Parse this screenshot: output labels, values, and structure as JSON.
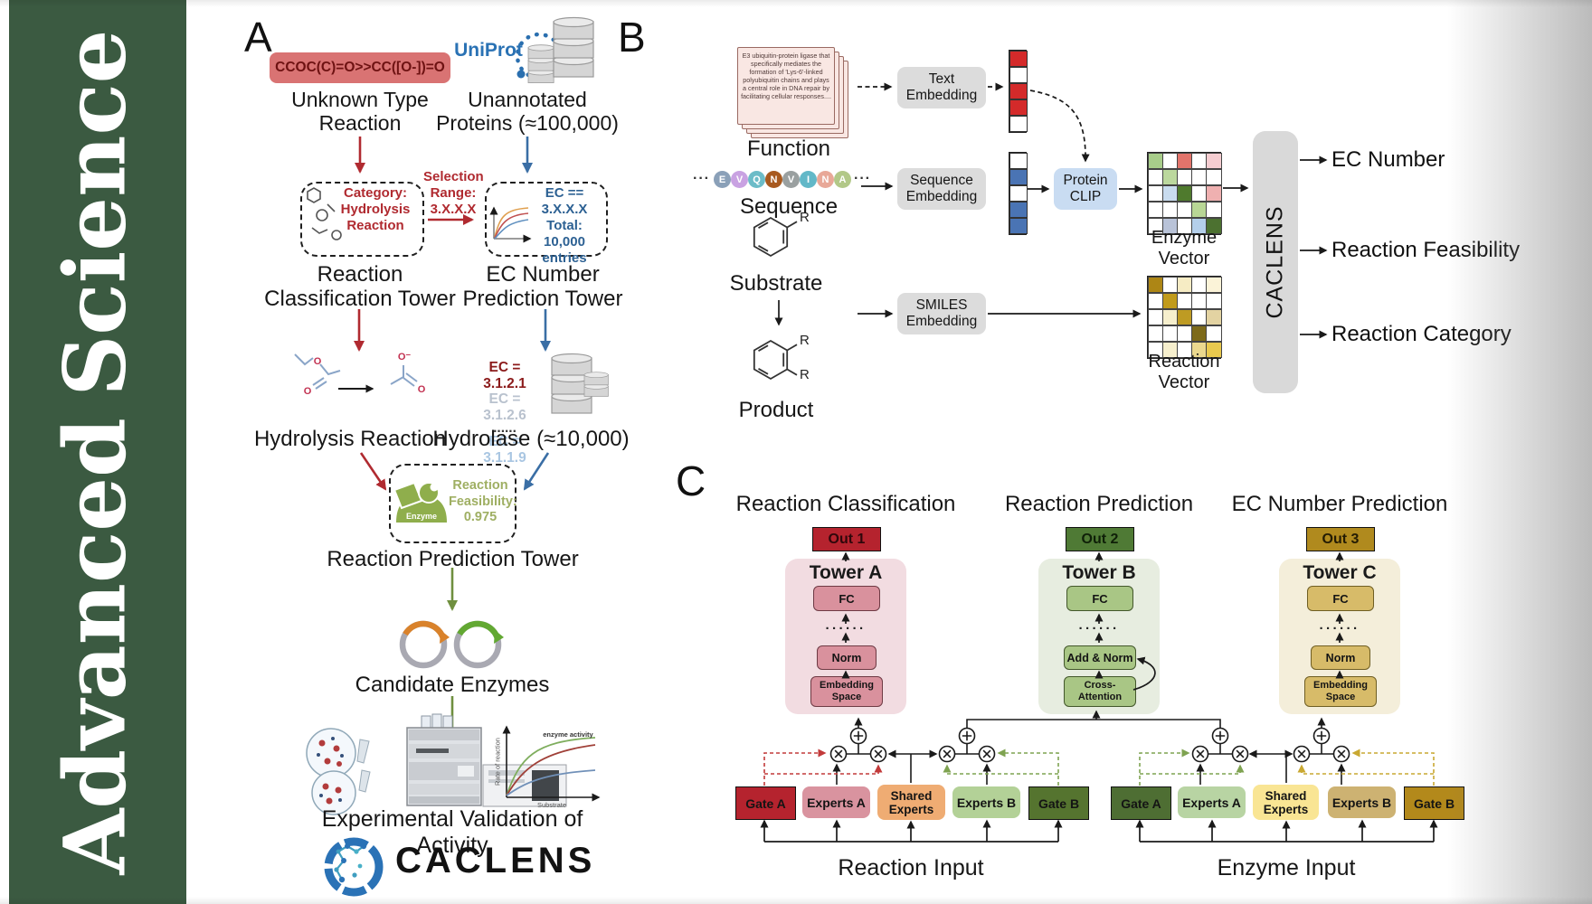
{
  "journal": {
    "title_words": [
      "Advanced",
      "Science"
    ],
    "bg_color": "#3B5A41"
  },
  "panelA": {
    "label": "A",
    "smiles_reaction": "CCOC(C)=O>>CC([O-])=O",
    "unknown_reaction_lines": [
      "Unknown Type",
      "Reaction"
    ],
    "uniprot_logo": "UniProt",
    "unannotated_lines": [
      "Unannotated",
      "Proteins (≈100,000)"
    ],
    "category_box_lines": [
      "Category:",
      "Hydrolysis",
      "Reaction"
    ],
    "selection_lines": [
      "Selection",
      "Range:",
      "3.X.X.X"
    ],
    "ec_filter_lines": [
      "EC == 3.X.X.X",
      "Total: 10,000",
      "entries"
    ],
    "classification_tower_lines": [
      "Reaction",
      "Classification Tower"
    ],
    "ec_tower_lines": [
      "EC Number",
      "Prediction Tower"
    ],
    "atoms": [
      "O",
      "O",
      "O⁻",
      "O"
    ],
    "ec_list": [
      {
        "text": "EC = 3.1.2.1",
        "color": "#8B1A1A"
      },
      {
        "text": "EC = 3.1.2.6",
        "color": "#B9C2CE"
      },
      {
        "text": "......",
        "color": "#3a3a3a"
      },
      {
        "text": "EC = 3.1.1.9",
        "color": "#A9C6E2"
      }
    ],
    "hydrolysis_reaction": "Hydrolysis Reaction",
    "hydrolase": "Hydrolase (≈10,000)",
    "enzyme_badge": "Enzyme",
    "feasibility_lines": [
      "Reaction",
      "Feasibility:",
      "0.975"
    ],
    "prediction_tower": "Reaction Prediction Tower",
    "candidate_enzymes": "Candidate Enzymes",
    "activity_plot": {
      "annotation": "enzyme activity",
      "ylabel": "Rate of reaction",
      "xlabel": "Substrate"
    },
    "validation": "Experimental Validation of Activity",
    "brand": "CACLENS"
  },
  "panelB": {
    "label": "B",
    "function_card_text": "E3 ubiquitin-protein ligase that specifically mediates the formation of 'Lys-6'-linked polyubiquitin chains and plays a central role in DNA repair by facilitating cellular responses....",
    "function_label": "Function",
    "ellipsis": "···",
    "sequence_label": "Sequence",
    "sequence_residues": [
      {
        "t": "E",
        "c": "#8AA0B8"
      },
      {
        "t": "V",
        "c": "#C9A2E2"
      },
      {
        "t": "Q",
        "c": "#6CBCC8"
      },
      {
        "t": "N",
        "c": "#A85A20"
      },
      {
        "t": "V",
        "c": "#9AA0A0"
      },
      {
        "t": "I",
        "c": "#62B8C8"
      },
      {
        "t": "N",
        "c": "#E8A898"
      },
      {
        "t": "A",
        "c": "#B2C888"
      }
    ],
    "substrate_label": "Substrate",
    "product_label": "Product",
    "r_group": "R",
    "text_embedding_lines": [
      "Text",
      "Embedding"
    ],
    "sequence_embedding_lines": [
      "Sequence",
      "Embedding"
    ],
    "smiles_embedding_lines": [
      "SMILES",
      "Embedding"
    ],
    "protein_clip_lines": [
      "Protein",
      "CLIP"
    ],
    "enzyme_vector_label": "Enzyme Vector",
    "reaction_vector_label": "Reaction Vector",
    "caclens": "CACLENS",
    "outputs": [
      "EC Number",
      "Reaction Feasibility",
      "Reaction Category"
    ],
    "text_vector": [
      [
        "#D42A2A"
      ],
      [
        "#FFFFFF"
      ],
      [
        "#D42A2A"
      ],
      [
        "#D42A2A"
      ],
      [
        "#FFFFFF"
      ]
    ],
    "seq_vector": [
      [
        "#FFFFFF"
      ],
      [
        "#4A74B4"
      ],
      [
        "#FFFFFF"
      ],
      [
        "#4A74B4"
      ],
      [
        "#4A74B4"
      ]
    ],
    "enzyme_vector_grid": [
      [
        "#A8CD8A",
        "#FFFFFF",
        "#E2746B",
        "#FFFFFF",
        "#F5CDD1"
      ],
      [
        "#FFFFFF",
        "#BCD89E",
        "#FFFFFF",
        "#FFFFFF",
        "#FFFFFF"
      ],
      [
        "#FFFFFF",
        "#C9DCEF",
        "#4F7A2D",
        "#FFFFFF",
        "#EFB0B0"
      ],
      [
        "#FFFFFF",
        "#FFFFFF",
        "#FFFFFF",
        "#B8D695",
        "#FFFFFF"
      ],
      [
        "#FFFFFF",
        "#B9C3D8",
        "#FFFFFF",
        "#B4CFEA",
        "#4C7130"
      ]
    ],
    "reaction_vector_grid": [
      [
        "#AD8615",
        "#FFFFFF",
        "#F6ECC4",
        "#FFFFFF",
        "#FBF3D8"
      ],
      [
        "#FFFFFF",
        "#C19B1B",
        "#FFFFFF",
        "#FFFFFF",
        "#FFFFFF"
      ],
      [
        "#FFFFFF",
        "#F6EFCD",
        "#BE9B23",
        "#FFFFFF",
        "#E3D3A2"
      ],
      [
        "#FFFFFF",
        "#FFFFFF",
        "#FFFFFF",
        "#7D6A1A",
        "#FFFFFF"
      ],
      [
        "#FFFFFF",
        "#F6EFCD",
        "#FFFFFF",
        "#EBD88E",
        "#E9C94E"
      ]
    ]
  },
  "panelC": {
    "label": "C",
    "dots": "······",
    "columns": [
      {
        "header": "Reaction Classification",
        "out": "Out 1",
        "tower": "Tower A",
        "fc": "FC",
        "mid": "Norm",
        "base_lines": [
          "Embedding",
          "Space"
        ]
      },
      {
        "header": "Reaction Prediction",
        "out": "Out 2",
        "tower": "Tower B",
        "fc": "FC",
        "mid": "Add & Norm",
        "base_lines": [
          "Cross-",
          "Attention"
        ]
      },
      {
        "header": "EC Number Prediction",
        "out": "Out 3",
        "tower": "Tower C",
        "fc": "FC",
        "mid": "Norm",
        "base_lines": [
          "Embedding",
          "Space"
        ]
      }
    ],
    "moe": {
      "left": {
        "gate_a": "Gate A",
        "experts_a": "Experts A",
        "shared_lines": [
          "Shared",
          "Experts"
        ],
        "experts_b": "Experts B",
        "gate_b": "Gate B",
        "input": "Reaction Input"
      },
      "right": {
        "gate_a": "Gate A",
        "experts_a": "Experts A",
        "shared_lines": [
          "Shared",
          "Experts"
        ],
        "experts_b": "Experts B",
        "gate_b": "Gate B",
        "input": "Enzyme Input"
      }
    }
  }
}
